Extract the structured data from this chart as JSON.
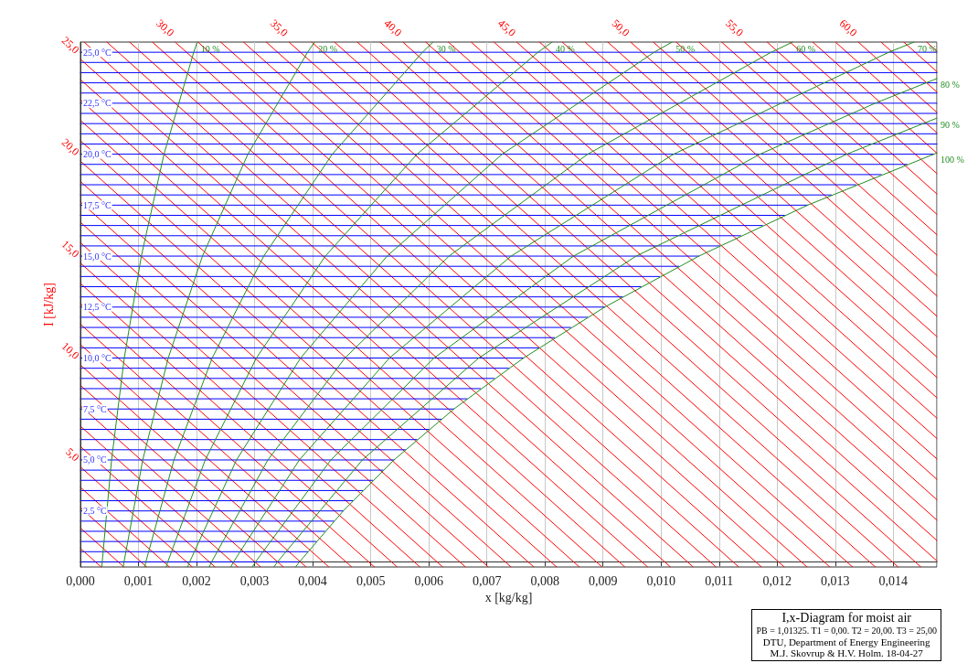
{
  "chart_data": {
    "type": "line",
    "title": "I,x-Diagram for moist air",
    "xlabel": "x [kg/kg]",
    "ylabel": "I [kJ/kg]",
    "annotations": [
      "PB = 1,01325. T1 = 0,00. T2 = 20,00. T3 = 25,00",
      "DTU, Department of Energy Engineering",
      "M.J. Skovrup & H.V. Holm. 18-04-27"
    ],
    "xlim": [
      0,
      0.01475
    ],
    "ylim": [
      -0.25,
      25.5
    ],
    "xticks": [
      {
        "value": 0,
        "label": "0,000"
      },
      {
        "value": 0.001,
        "label": "0,001"
      },
      {
        "value": 0.002,
        "label": "0,002"
      },
      {
        "value": 0.003,
        "label": "0,003"
      },
      {
        "value": 0.004,
        "label": "0,004"
      },
      {
        "value": 0.005,
        "label": "0,005"
      },
      {
        "value": 0.006,
        "label": "0,006"
      },
      {
        "value": 0.007,
        "label": "0,007"
      },
      {
        "value": 0.008,
        "label": "0,008"
      },
      {
        "value": 0.009,
        "label": "0,009"
      },
      {
        "value": 0.01,
        "label": "0,010"
      },
      {
        "value": 0.011,
        "label": "0,011"
      },
      {
        "value": 0.012,
        "label": "0,012"
      },
      {
        "value": 0.013,
        "label": "0,013"
      },
      {
        "value": 0.014,
        "label": "0,014"
      }
    ],
    "yticks": [
      {
        "value": 2.5,
        "label": "2,5 °C"
      },
      {
        "value": 5,
        "label": "5,0 °C"
      },
      {
        "value": 7.5,
        "label": "7,5 °C"
      },
      {
        "value": 10,
        "label": "10,0 °C"
      },
      {
        "value": 12.5,
        "label": "12,5 °C"
      },
      {
        "value": 15,
        "label": "15,0 °C"
      },
      {
        "value": 17.5,
        "label": "17,5 °C"
      },
      {
        "value": 20,
        "label": "20,0 °C"
      },
      {
        "value": 22.5,
        "label": "22,5 °C"
      },
      {
        "value": 25,
        "label": "25,0 °C"
      }
    ],
    "grid": "x",
    "marker": "none",
    "series": [
      {
        "color": "#ff0000",
        "x": [
          0,
          0.000357
        ],
        "values": [
          0.66,
          -0.25
        ]
      },
      {
        "color": "#ff0000",
        "x": [
          0,
          0.000749
        ],
        "values": [
          1.66,
          -0.25
        ]
      },
      {
        "color": "#ff0000",
        "x": [
          0,
          0.001141
        ],
        "values": [
          2.66,
          -0.25
        ]
      },
      {
        "color": "#ff0000",
        "x": [
          0,
          0.001533
        ],
        "values": [
          3.66,
          -0.25
        ]
      },
      {
        "name": "5,0",
        "color": "#ff0000",
        "x": [
          0,
          0.001925
        ],
        "values": [
          4.66,
          -0.25
        ]
      },
      {
        "color": "#ff0000",
        "x": [
          0,
          0.002318
        ],
        "values": [
          5.66,
          -0.25
        ]
      },
      {
        "color": "#ff0000",
        "x": [
          0,
          0.00271
        ],
        "values": [
          6.66,
          -0.25
        ]
      },
      {
        "color": "#ff0000",
        "x": [
          0,
          0.003102
        ],
        "values": [
          7.66,
          -0.25
        ]
      },
      {
        "color": "#ff0000",
        "x": [
          0,
          0.003494
        ],
        "values": [
          8.66,
          -0.25
        ]
      },
      {
        "name": "10,0",
        "color": "#ff0000",
        "x": [
          0,
          0.003886
        ],
        "values": [
          9.66,
          -0.25
        ]
      },
      {
        "color": "#ff0000",
        "x": [
          0,
          0.004278
        ],
        "values": [
          10.66,
          -0.25
        ]
      },
      {
        "color": "#ff0000",
        "x": [
          0,
          0.004671
        ],
        "values": [
          11.66,
          -0.25
        ]
      },
      {
        "color": "#ff0000",
        "x": [
          0,
          0.005063
        ],
        "values": [
          12.66,
          -0.25
        ]
      },
      {
        "color": "#ff0000",
        "x": [
          0,
          0.005455
        ],
        "values": [
          13.66,
          -0.25
        ]
      },
      {
        "name": "15,0",
        "color": "#ff0000",
        "x": [
          0,
          0.005847
        ],
        "values": [
          14.66,
          -0.25
        ]
      },
      {
        "color": "#ff0000",
        "x": [
          0,
          0.006239
        ],
        "values": [
          15.66,
          -0.25
        ]
      },
      {
        "color": "#ff0000",
        "x": [
          0,
          0.006631
        ],
        "values": [
          16.66,
          -0.25
        ]
      },
      {
        "color": "#ff0000",
        "x": [
          0,
          0.007024
        ],
        "values": [
          17.66,
          -0.25
        ]
      },
      {
        "color": "#ff0000",
        "x": [
          0,
          0.007416
        ],
        "values": [
          18.66,
          -0.25
        ]
      },
      {
        "name": "20,0",
        "color": "#ff0000",
        "x": [
          0,
          0.007808
        ],
        "values": [
          19.66,
          -0.25
        ]
      },
      {
        "color": "#ff0000",
        "x": [
          0,
          0.0082
        ],
        "values": [
          20.66,
          -0.25
        ]
      },
      {
        "color": "#ff0000",
        "x": [
          0,
          0.008592
        ],
        "values": [
          21.66,
          -0.25
        ]
      },
      {
        "color": "#ff0000",
        "x": [
          0,
          0.008984
        ],
        "values": [
          22.66,
          -0.25
        ]
      },
      {
        "color": "#ff0000",
        "x": [
          0,
          0.009376
        ],
        "values": [
          23.66,
          -0.25
        ]
      },
      {
        "name": "25,0",
        "color": "#ff0000",
        "x": [
          0,
          0.009769
        ],
        "values": [
          24.66,
          -0.25
        ]
      },
      {
        "color": "#ff0000",
        "x": [
          6.3e-05,
          0.010161
        ],
        "values": [
          25.5,
          -0.25
        ]
      },
      {
        "color": "#ff0000",
        "x": [
          0.000455,
          0.010553
        ],
        "values": [
          25.5,
          -0.25
        ]
      },
      {
        "color": "#ff0000",
        "x": [
          0.000847,
          0.010945
        ],
        "values": [
          25.5,
          -0.25
        ]
      },
      {
        "color": "#ff0000",
        "x": [
          0.001239,
          0.011337
        ],
        "values": [
          25.5,
          -0.25
        ]
      },
      {
        "name": "30,0",
        "color": "#ff0000",
        "x": [
          0.001631,
          0.011729
        ],
        "values": [
          25.5,
          -0.25
        ]
      },
      {
        "color": "#ff0000",
        "x": [
          0.002024,
          0.012122
        ],
        "values": [
          25.5,
          -0.25
        ]
      },
      {
        "color": "#ff0000",
        "x": [
          0.002416,
          0.012514
        ],
        "values": [
          25.5,
          -0.25
        ]
      },
      {
        "color": "#ff0000",
        "x": [
          0.002808,
          0.012906
        ],
        "values": [
          25.5,
          -0.25
        ]
      },
      {
        "color": "#ff0000",
        "x": [
          0.0032,
          0.013298
        ],
        "values": [
          25.5,
          -0.25
        ]
      },
      {
        "name": "35,0",
        "color": "#ff0000",
        "x": [
          0.003592,
          0.01369
        ],
        "values": [
          25.5,
          -0.25
        ]
      },
      {
        "color": "#ff0000",
        "x": [
          0.003984,
          0.014082
        ],
        "values": [
          25.5,
          -0.25
        ]
      },
      {
        "color": "#ff0000",
        "x": [
          0.004376,
          0.014475
        ],
        "values": [
          25.5,
          -0.25
        ]
      },
      {
        "color": "#ff0000",
        "x": [
          0.004769,
          0.01475
        ],
        "values": [
          25.5,
          0.05
        ]
      },
      {
        "color": "#ff0000",
        "x": [
          0.005161,
          0.01475
        ],
        "values": [
          25.5,
          1.05
        ]
      },
      {
        "name": "40,0",
        "color": "#ff0000",
        "x": [
          0.005553,
          0.01475
        ],
        "values": [
          25.5,
          2.05
        ]
      },
      {
        "color": "#ff0000",
        "x": [
          0.005945,
          0.01475
        ],
        "values": [
          25.5,
          3.05
        ]
      },
      {
        "color": "#ff0000",
        "x": [
          0.006337,
          0.01475
        ],
        "values": [
          25.5,
          4.05
        ]
      },
      {
        "color": "#ff0000",
        "x": [
          0.006729,
          0.01475
        ],
        "values": [
          25.5,
          5.05
        ]
      },
      {
        "color": "#ff0000",
        "x": [
          0.007122,
          0.01475
        ],
        "values": [
          25.5,
          6.05
        ]
      },
      {
        "name": "45,0",
        "color": "#ff0000",
        "x": [
          0.007514,
          0.01475
        ],
        "values": [
          25.5,
          7.05
        ]
      },
      {
        "color": "#ff0000",
        "x": [
          0.007906,
          0.01475
        ],
        "values": [
          25.5,
          8.05
        ]
      },
      {
        "color": "#ff0000",
        "x": [
          0.008298,
          0.01475
        ],
        "values": [
          25.5,
          9.05
        ]
      },
      {
        "color": "#ff0000",
        "x": [
          0.00869,
          0.01475
        ],
        "values": [
          25.5,
          10.05
        ]
      },
      {
        "color": "#ff0000",
        "x": [
          0.009082,
          0.01475
        ],
        "values": [
          25.5,
          11.05
        ]
      },
      {
        "name": "50,0",
        "color": "#ff0000",
        "x": [
          0.009475,
          0.01475
        ],
        "values": [
          25.5,
          12.05
        ]
      },
      {
        "color": "#ff0000",
        "x": [
          0.009867,
          0.01475
        ],
        "values": [
          25.5,
          13.05
        ]
      },
      {
        "color": "#ff0000",
        "x": [
          0.010259,
          0.01475
        ],
        "values": [
          25.5,
          14.05
        ]
      },
      {
        "color": "#ff0000",
        "x": [
          0.010651,
          0.01475
        ],
        "values": [
          25.5,
          15.05
        ]
      },
      {
        "color": "#ff0000",
        "x": [
          0.011043,
          0.01475
        ],
        "values": [
          25.5,
          16.05
        ]
      },
      {
        "name": "55,0",
        "color": "#ff0000",
        "x": [
          0.011435,
          0.01475
        ],
        "values": [
          25.5,
          17.05
        ]
      },
      {
        "color": "#ff0000",
        "x": [
          0.011827,
          0.01475
        ],
        "values": [
          25.5,
          18.05
        ]
      },
      {
        "color": "#ff0000",
        "x": [
          0.01222,
          0.01475
        ],
        "values": [
          25.5,
          19.05
        ]
      },
      {
        "color": "#ff0000",
        "x": [
          0.012612,
          0.01475
        ],
        "values": [
          25.5,
          20.05
        ]
      },
      {
        "color": "#ff0000",
        "x": [
          0.013004,
          0.01475
        ],
        "values": [
          25.5,
          21.05
        ]
      },
      {
        "name": "60,0",
        "color": "#ff0000",
        "x": [
          0.013396,
          0.01475
        ],
        "values": [
          25.5,
          22.05
        ]
      },
      {
        "color": "#ff0000",
        "x": [
          0.013788,
          0.01475
        ],
        "values": [
          25.5,
          23.05
        ]
      },
      {
        "color": "#ff0000",
        "x": [
          0.01418,
          0.01475
        ],
        "values": [
          25.5,
          24.05
        ]
      },
      {
        "color": "#ff0000",
        "x": [
          0.014573,
          0.01475
        ],
        "values": [
          25.5,
          25.05
        ]
      },
      {
        "color": "#0000ff",
        "x": [
          0,
          0.003773
        ],
        "values": [
          0,
          0
        ]
      },
      {
        "color": "#0000ff",
        "x": [
          0,
          0.003916
        ],
        "values": [
          0.5,
          0.5
        ]
      },
      {
        "color": "#0000ff",
        "x": [
          0,
          0.00406
        ],
        "values": [
          1,
          1
        ]
      },
      {
        "color": "#0000ff",
        "x": [
          0,
          0.004209
        ],
        "values": [
          1.5,
          1.5
        ]
      },
      {
        "color": "#0000ff",
        "x": [
          0,
          0.004364
        ],
        "values": [
          2,
          2
        ]
      },
      {
        "color": "#0000ff",
        "x": [
          0,
          0.004526
        ],
        "values": [
          2.5,
          2.5
        ]
      },
      {
        "color": "#0000ff",
        "x": [
          0,
          0.004688
        ],
        "values": [
          3,
          3
        ]
      },
      {
        "color": "#0000ff",
        "x": [
          0,
          0.004857
        ],
        "values": [
          3.5,
          3.5
        ]
      },
      {
        "color": "#0000ff",
        "x": [
          0,
          0.005031
        ],
        "values": [
          4,
          4
        ]
      },
      {
        "color": "#0000ff",
        "x": [
          0,
          0.005212
        ],
        "values": [
          4.5,
          4.5
        ]
      },
      {
        "color": "#0000ff",
        "x": [
          0,
          0.0054
        ],
        "values": [
          5,
          5
        ]
      },
      {
        "color": "#0000ff",
        "x": [
          0,
          0.005593
        ],
        "values": [
          5.5,
          5.5
        ]
      },
      {
        "color": "#0000ff",
        "x": [
          0,
          0.005793
        ],
        "values": [
          6,
          6
        ]
      },
      {
        "color": "#0000ff",
        "x": [
          0,
          0.006
        ],
        "values": [
          6.5,
          6.5
        ]
      },
      {
        "color": "#0000ff",
        "x": [
          0,
          0.006212
        ],
        "values": [
          7,
          7
        ]
      },
      {
        "color": "#0000ff",
        "x": [
          0,
          0.006432
        ],
        "values": [
          7.5,
          7.5
        ]
      },
      {
        "color": "#0000ff",
        "x": [
          0,
          0.006657
        ],
        "values": [
          8,
          8
        ]
      },
      {
        "color": "#0000ff",
        "x": [
          0,
          0.006889
        ],
        "values": [
          8.5,
          8.5
        ]
      },
      {
        "color": "#0000ff",
        "x": [
          0,
          0.007128
        ],
        "values": [
          9,
          9
        ]
      },
      {
        "color": "#0000ff",
        "x": [
          0,
          0.007373
        ],
        "values": [
          9.5,
          9.5
        ]
      },
      {
        "color": "#0000ff",
        "x": [
          0,
          0.007631
        ],
        "values": [
          10,
          10
        ]
      },
      {
        "color": "#0000ff",
        "x": [
          0,
          0.007895
        ],
        "values": [
          10.5,
          10.5
        ]
      },
      {
        "color": "#0000ff",
        "x": [
          0,
          0.008166
        ],
        "values": [
          11,
          11
        ]
      },
      {
        "color": "#0000ff",
        "x": [
          0,
          0.008444
        ],
        "values": [
          11.5,
          11.5
        ]
      },
      {
        "color": "#0000ff",
        "x": [
          0,
          0.008734
        ],
        "values": [
          12,
          12
        ]
      },
      {
        "color": "#0000ff",
        "x": [
          0,
          0.00903
        ],
        "values": [
          12.5,
          12.5
        ]
      },
      {
        "color": "#0000ff",
        "x": [
          0,
          0.009334
        ],
        "values": [
          13,
          13
        ]
      },
      {
        "color": "#0000ff",
        "x": [
          0,
          0.00965
        ],
        "values": [
          13.5,
          13.5
        ]
      },
      {
        "color": "#0000ff",
        "x": [
          0,
          0.009973
        ],
        "values": [
          14,
          14
        ]
      },
      {
        "color": "#0000ff",
        "x": [
          0,
          0.010309
        ],
        "values": [
          14.5,
          14.5
        ]
      },
      {
        "color": "#0000ff",
        "x": [
          0,
          0.010652
        ],
        "values": [
          15,
          15
        ]
      },
      {
        "color": "#0000ff",
        "x": [
          0,
          0.011008
        ],
        "values": [
          15.5,
          15.5
        ]
      },
      {
        "color": "#0000ff",
        "x": [
          0,
          0.01137
        ],
        "values": [
          16,
          16
        ]
      },
      {
        "color": "#0000ff",
        "x": [
          0,
          0.011746
        ],
        "values": [
          16.5,
          16.5
        ]
      },
      {
        "color": "#0000ff",
        "x": [
          0,
          0.012128
        ],
        "values": [
          17,
          17
        ]
      },
      {
        "color": "#0000ff",
        "x": [
          0,
          0.012525
        ],
        "values": [
          17.5,
          17.5
        ]
      },
      {
        "color": "#0000ff",
        "x": [
          0,
          0.012934
        ],
        "values": [
          18,
          18
        ]
      },
      {
        "color": "#0000ff",
        "x": [
          0,
          0.013357
        ],
        "values": [
          18.5,
          18.5
        ]
      },
      {
        "color": "#0000ff",
        "x": [
          0,
          0.013793
        ],
        "values": [
          19,
          19
        ]
      },
      {
        "color": "#0000ff",
        "x": [
          0,
          0.014235
        ],
        "values": [
          19.5,
          19.5
        ]
      },
      {
        "color": "#0000ff",
        "x": [
          0,
          0.014698
        ],
        "values": [
          20,
          20
        ]
      },
      {
        "color": "#0000ff",
        "x": [
          0,
          0.01475
        ],
        "values": [
          20.5,
          20.5
        ]
      },
      {
        "color": "#0000ff",
        "x": [
          0,
          0.01475
        ],
        "values": [
          21,
          21
        ]
      },
      {
        "color": "#0000ff",
        "x": [
          0,
          0.01475
        ],
        "values": [
          21.5,
          21.5
        ]
      },
      {
        "color": "#0000ff",
        "x": [
          0,
          0.01475
        ],
        "values": [
          22,
          22
        ]
      },
      {
        "color": "#0000ff",
        "x": [
          0,
          0.01475
        ],
        "values": [
          22.5,
          22.5
        ]
      },
      {
        "color": "#0000ff",
        "x": [
          0,
          0.01475
        ],
        "values": [
          23,
          23
        ]
      },
      {
        "color": "#0000ff",
        "x": [
          0,
          0.01475
        ],
        "values": [
          23.5,
          23.5
        ]
      },
      {
        "color": "#0000ff",
        "x": [
          0,
          0.01475
        ],
        "values": [
          24,
          24
        ]
      },
      {
        "color": "#0000ff",
        "x": [
          0,
          0.01475
        ],
        "values": [
          24.5,
          24.5
        ]
      },
      {
        "color": "#0000ff",
        "x": [
          0,
          0.01475
        ],
        "values": [
          25,
          25
        ]
      },
      {
        "name": "10 %",
        "color": "#228b22",
        "x": [
          0.000368,
          0.000375,
          0.000536,
          0.000755,
          0.001049,
          0.001439,
          0.001951,
          0.002011
        ],
        "values": [
          -0.25,
          0,
          5,
          10,
          15,
          20,
          25,
          25.5
        ]
      },
      {
        "name": "20 %",
        "color": "#228b22",
        "x": [
          0.000737,
          0.000751,
          0.001073,
          0.001512,
          0.002102,
          0.002884,
          0.003912,
          0.004032
        ],
        "values": [
          -0.25,
          0,
          5,
          10,
          15,
          20,
          25,
          25.5
        ]
      },
      {
        "name": "30 %",
        "color": "#228b22",
        "x": [
          0.001107,
          0.001127,
          0.00161,
          0.00227,
          0.003157,
          0.004338,
          0.005891,
          0.006073
        ],
        "values": [
          -0.25,
          0,
          5,
          10,
          15,
          20,
          25,
          25.5
        ]
      },
      {
        "name": "40 %",
        "color": "#228b22",
        "x": [
          0.001477,
          0.001504,
          0.002149,
          0.00303,
          0.004218,
          0.005797,
          0.00788,
          0.008124
        ],
        "values": [
          -0.25,
          0,
          5,
          10,
          15,
          20,
          25,
          25.5
        ]
      },
      {
        "name": "50 %",
        "color": "#228b22",
        "x": [
          0.001847,
          0.001881,
          0.002688,
          0.003792,
          0.005281,
          0.007263,
          0.009881,
          0.010189
        ],
        "values": [
          -0.25,
          0,
          5,
          10,
          15,
          20,
          25,
          25.5
        ]
      },
      {
        "name": "60 %",
        "color": "#228b22",
        "x": [
          0.002218,
          0.002259,
          0.003228,
          0.004556,
          0.006348,
          0.008736,
          0.011895,
          0.012267
        ],
        "values": [
          -0.25,
          0,
          5,
          10,
          15,
          20,
          25,
          25.5
        ]
      },
      {
        "name": "70 %",
        "color": "#228b22",
        "x": [
          0.00259,
          0.002637,
          0.00377,
          0.005322,
          0.007418,
          0.010216,
          0.013922,
          0.014358
        ],
        "values": [
          -0.25,
          0,
          5,
          10,
          15,
          20,
          25,
          25.5
        ]
      },
      {
        "name": "80 %",
        "color": "#228b22",
        "x": [
          0.002961,
          0.003015,
          0.004312,
          0.00609,
          0.008492,
          0.011703,
          0.013687,
          0.01475
        ],
        "values": [
          -0.25,
          0,
          5,
          10,
          15,
          20,
          22.5,
          23.71
        ]
      },
      {
        "name": "90 %",
        "color": "#228b22",
        "x": [
          0.003333,
          0.003394,
          0.004855,
          0.006859,
          0.00957,
          0.013197,
          0.01475
        ],
        "values": [
          -0.25,
          0,
          5,
          10,
          15,
          20,
          21.77
        ]
      },
      {
        "name": "100 %",
        "color": "#228b22",
        "x": [
          0.003705,
          0.003773,
          0.004526,
          0.0054,
          0.006432,
          0.007631,
          0.00903,
          0.010652,
          0.012525,
          0.014698,
          0.01475
        ],
        "values": [
          -0.25,
          0,
          2.5,
          5,
          7.5,
          10,
          12.5,
          15,
          17.5,
          20,
          20.06
        ]
      }
    ]
  }
}
